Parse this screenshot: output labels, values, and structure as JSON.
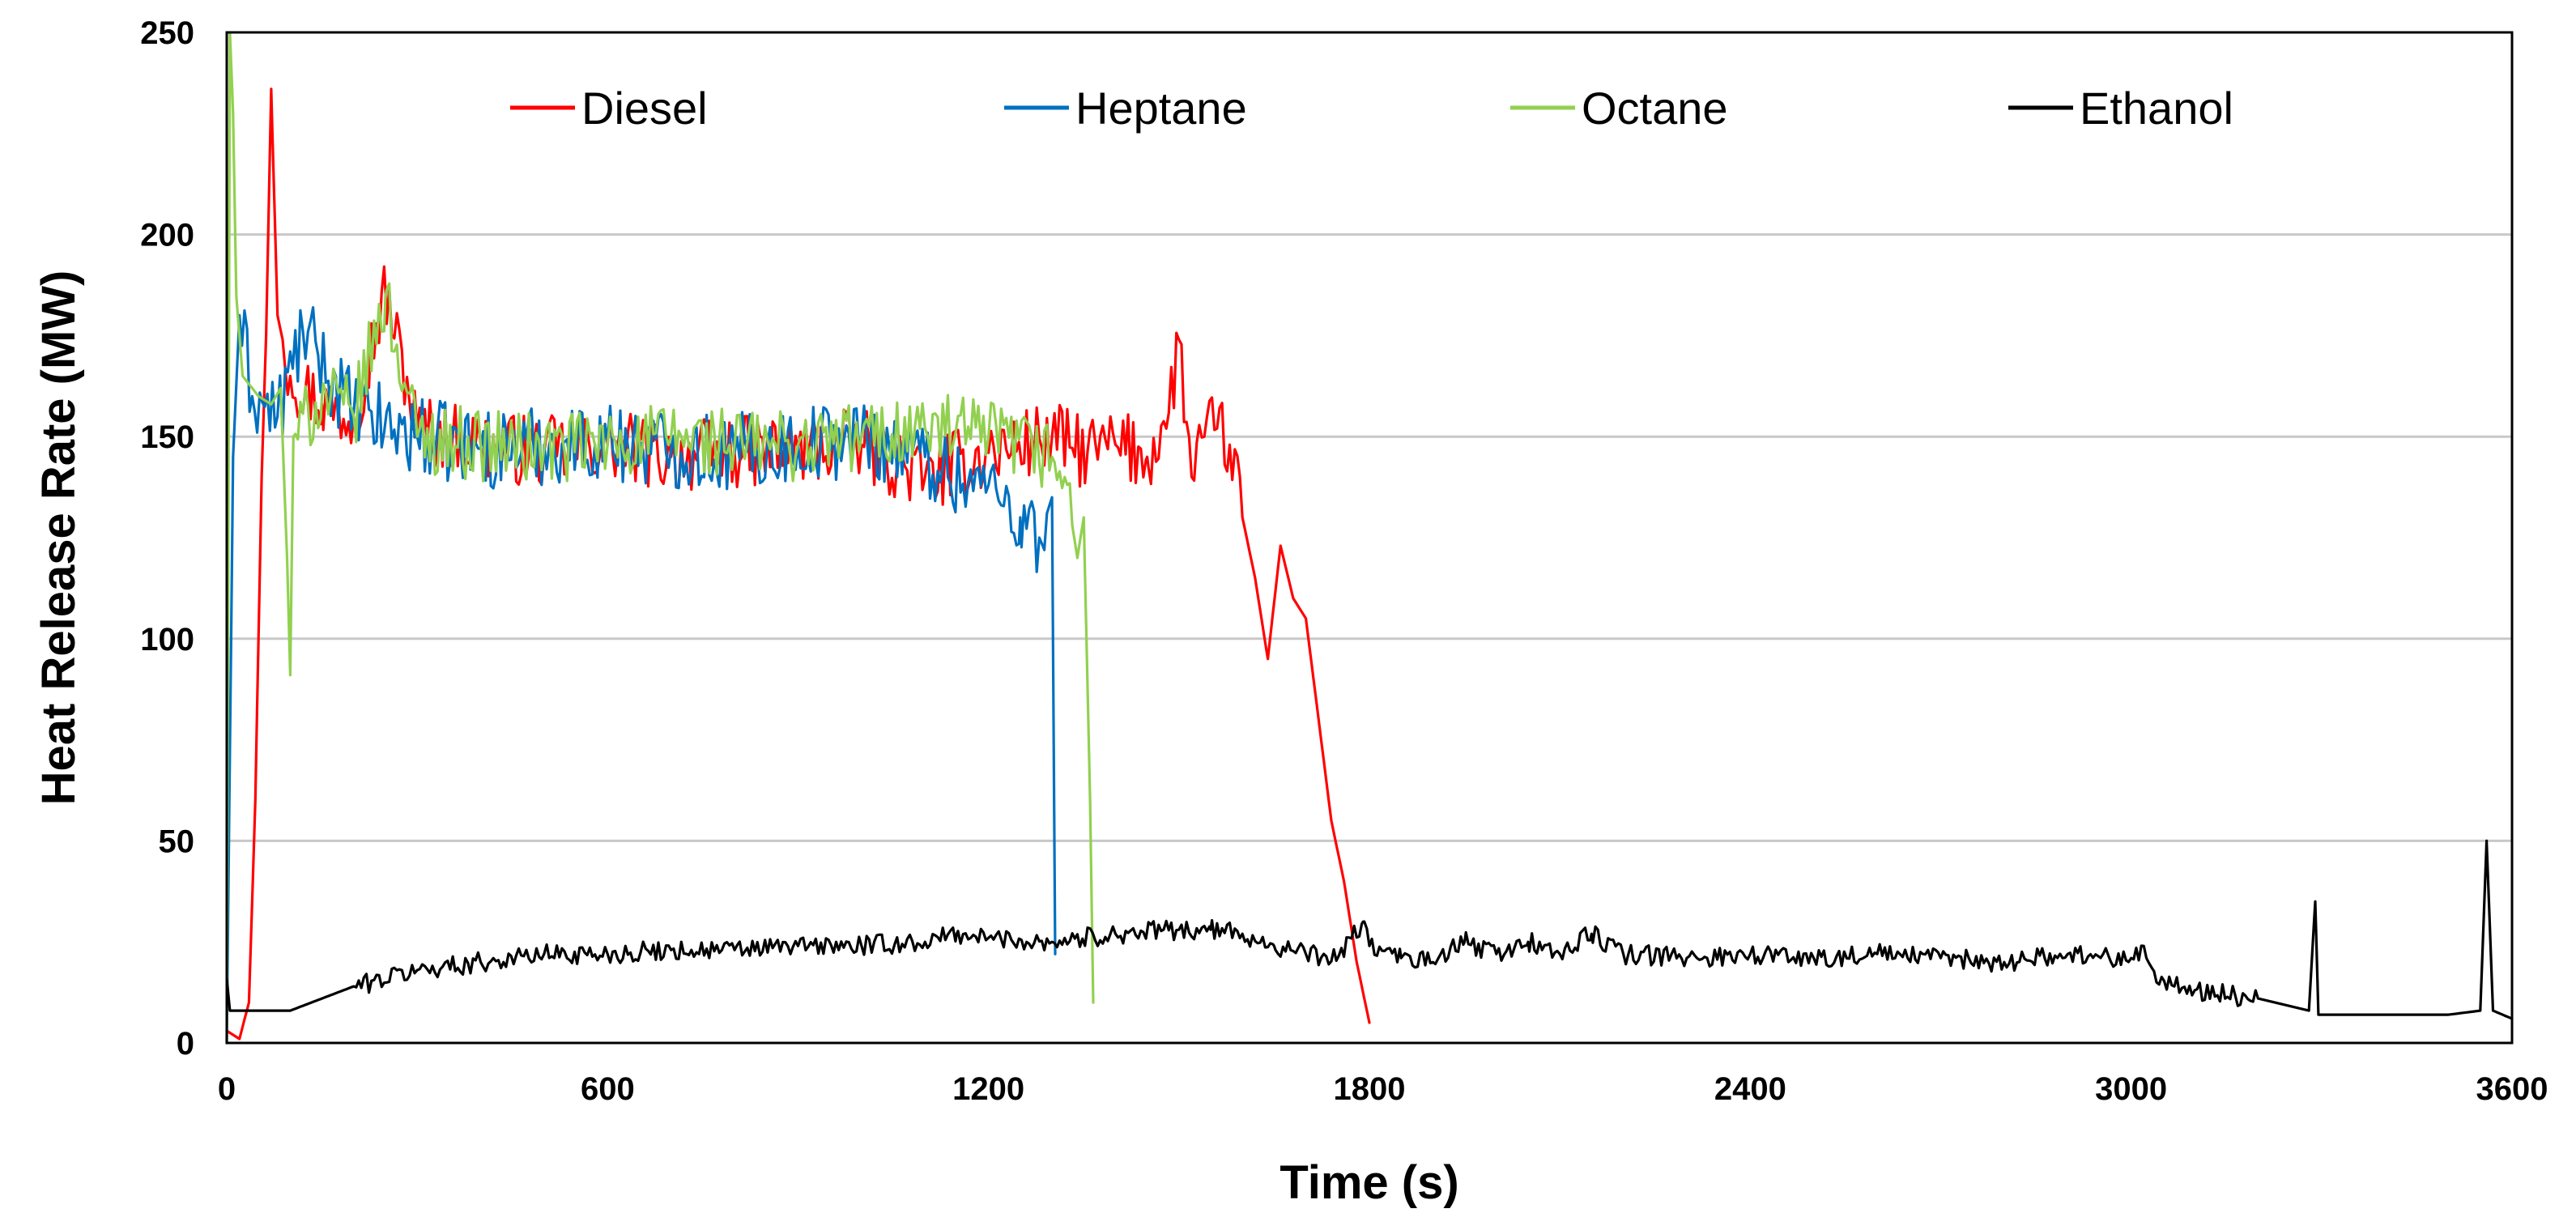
{
  "chart_data": {
    "type": "line",
    "title": "",
    "xlabel": "Time (s)",
    "ylabel": "Heat Release Rate (MW)",
    "xlim": [
      0,
      3600
    ],
    "ylim": [
      0,
      250
    ],
    "x_ticks": [
      0,
      600,
      1200,
      1800,
      2400,
      3000,
      3600
    ],
    "y_ticks": [
      0,
      50,
      100,
      150,
      200,
      250
    ],
    "grid": "horizontal",
    "legend_position": "top",
    "series": [
      {
        "name": "Diesel",
        "color": "#ff0000",
        "points": [
          [
            0,
            3
          ],
          [
            20,
            1
          ],
          [
            35,
            10
          ],
          [
            45,
            60
          ],
          [
            55,
            140
          ],
          [
            62,
            175
          ],
          [
            70,
            236
          ],
          [
            80,
            180
          ],
          [
            100,
            165
          ],
          [
            150,
            158
          ],
          [
            200,
            155
          ],
          [
            250,
            186
          ],
          [
            300,
            152
          ],
          [
            400,
            148
          ],
          [
            500,
            146
          ],
          [
            600,
            148
          ],
          [
            700,
            145
          ],
          [
            800,
            146
          ],
          [
            900,
            147
          ],
          [
            1000,
            148
          ],
          [
            1100,
            140
          ],
          [
            1200,
            146
          ],
          [
            1300,
            150
          ],
          [
            1350,
            146
          ],
          [
            1400,
            148
          ],
          [
            1450,
            145
          ],
          [
            1480,
            152
          ],
          [
            1500,
            174
          ],
          [
            1520,
            140
          ],
          [
            1540,
            150
          ],
          [
            1560,
            152
          ],
          [
            1580,
            148
          ],
          [
            1600,
            130
          ],
          [
            1620,
            115
          ],
          [
            1640,
            95
          ],
          [
            1660,
            123
          ],
          [
            1680,
            110
          ],
          [
            1700,
            105
          ],
          [
            1720,
            80
          ],
          [
            1740,
            55
          ],
          [
            1760,
            40
          ],
          [
            1780,
            20
          ],
          [
            1800,
            5
          ]
        ],
        "noise": 9,
        "noise_start": 90,
        "noise_end": 1600
      },
      {
        "name": "Heptane",
        "color": "#0070c0",
        "points": [
          [
            0,
            0
          ],
          [
            10,
            145
          ],
          [
            20,
            180
          ],
          [
            40,
            160
          ],
          [
            80,
            155
          ],
          [
            120,
            176
          ],
          [
            200,
            156
          ],
          [
            300,
            150
          ],
          [
            400,
            147
          ],
          [
            500,
            148
          ],
          [
            600,
            149
          ],
          [
            700,
            147
          ],
          [
            800,
            146
          ],
          [
            900,
            148
          ],
          [
            1000,
            150
          ],
          [
            1050,
            148
          ],
          [
            1100,
            145
          ],
          [
            1150,
            140
          ],
          [
            1200,
            138
          ],
          [
            1250,
            130
          ],
          [
            1280,
            125
          ],
          [
            1300,
            135
          ],
          [
            1305,
            22
          ]
        ],
        "noise": 10,
        "noise_start": 20,
        "noise_end": 1290
      },
      {
        "name": "Octane",
        "color": "#92d050",
        "points": [
          [
            0,
            0
          ],
          [
            5,
            250
          ],
          [
            10,
            230
          ],
          [
            15,
            185
          ],
          [
            25,
            165
          ],
          [
            50,
            160
          ],
          [
            70,
            158
          ],
          [
            85,
            162
          ],
          [
            95,
            120
          ],
          [
            100,
            91
          ],
          [
            105,
            150
          ],
          [
            150,
            160
          ],
          [
            200,
            155
          ],
          [
            250,
            185
          ],
          [
            300,
            150
          ],
          [
            400,
            148
          ],
          [
            500,
            147
          ],
          [
            600,
            148
          ],
          [
            700,
            150
          ],
          [
            800,
            148
          ],
          [
            900,
            148
          ],
          [
            1000,
            150
          ],
          [
            1100,
            152
          ],
          [
            1200,
            150
          ],
          [
            1300,
            145
          ],
          [
            1320,
            140
          ],
          [
            1340,
            120
          ],
          [
            1350,
            130
          ],
          [
            1360,
            60
          ],
          [
            1365,
            10
          ]
        ],
        "noise": 9,
        "noise_start": 110,
        "noise_end": 1330
      },
      {
        "name": "Ethanol",
        "color": "#000000",
        "points": [
          [
            0,
            16
          ],
          [
            5,
            8
          ],
          [
            100,
            8
          ],
          [
            200,
            14
          ],
          [
            300,
            18
          ],
          [
            400,
            20
          ],
          [
            500,
            22
          ],
          [
            600,
            22
          ],
          [
            700,
            23
          ],
          [
            800,
            23
          ],
          [
            900,
            24
          ],
          [
            1000,
            24
          ],
          [
            1100,
            25
          ],
          [
            1150,
            27
          ],
          [
            1200,
            26
          ],
          [
            1300,
            25
          ],
          [
            1400,
            27
          ],
          [
            1500,
            28
          ],
          [
            1550,
            28
          ],
          [
            1600,
            27
          ],
          [
            1650,
            24
          ],
          [
            1700,
            22
          ],
          [
            1750,
            21
          ],
          [
            1790,
            30
          ],
          [
            1800,
            24
          ],
          [
            1850,
            21
          ],
          [
            1900,
            20
          ],
          [
            1950,
            25
          ],
          [
            2000,
            22
          ],
          [
            2050,
            25
          ],
          [
            2100,
            22
          ],
          [
            2150,
            27
          ],
          [
            2200,
            22
          ],
          [
            2300,
            21
          ],
          [
            2400,
            22
          ],
          [
            2500,
            21
          ],
          [
            2600,
            22
          ],
          [
            2700,
            21
          ],
          [
            2800,
            20
          ],
          [
            2900,
            22
          ],
          [
            3000,
            21
          ],
          [
            3020,
            24
          ],
          [
            3040,
            15
          ],
          [
            3100,
            13
          ],
          [
            3200,
            11
          ],
          [
            3280,
            8
          ],
          [
            3290,
            35
          ],
          [
            3295,
            7
          ],
          [
            3400,
            7
          ],
          [
            3500,
            7
          ],
          [
            3550,
            8
          ],
          [
            3560,
            50
          ],
          [
            3570,
            8
          ],
          [
            3600,
            6
          ]
        ],
        "noise": 2.5,
        "noise_start": 200,
        "noise_end": 3200
      }
    ]
  }
}
